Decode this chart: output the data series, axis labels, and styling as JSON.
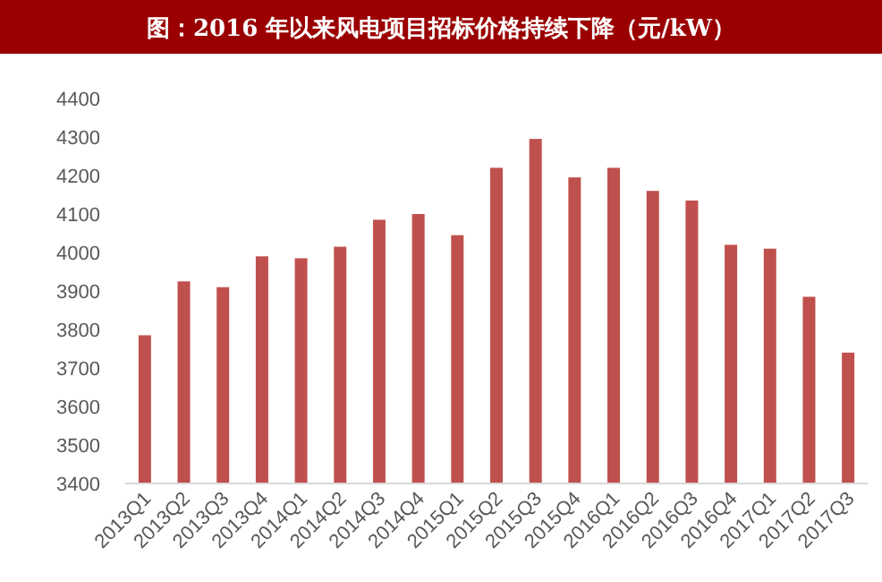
{
  "chart_data": {
    "type": "bar",
    "title": "图：2016 年以来风电项目招标价格持续下降（元/kW）",
    "categories": [
      "2013Q1",
      "2013Q2",
      "2013Q3",
      "2013Q4",
      "2014Q1",
      "2014Q2",
      "2014Q3",
      "2014Q4",
      "2015Q1",
      "2015Q2",
      "2015Q3",
      "2015Q4",
      "2016Q1",
      "2016Q2",
      "2016Q3",
      "2016Q4",
      "2017Q1",
      "2017Q2",
      "2017Q3"
    ],
    "values": [
      3785,
      3925,
      3910,
      3990,
      3985,
      4015,
      4085,
      4100,
      4045,
      4220,
      4295,
      4195,
      4220,
      4160,
      4135,
      4020,
      4010,
      3885,
      3740
    ],
    "color": "#c0504d",
    "ylim": [
      3400,
      4400
    ],
    "yticks": [
      3400,
      3500,
      3600,
      3700,
      3800,
      3900,
      4000,
      4100,
      4200,
      4300,
      4400
    ],
    "grid": false
  }
}
